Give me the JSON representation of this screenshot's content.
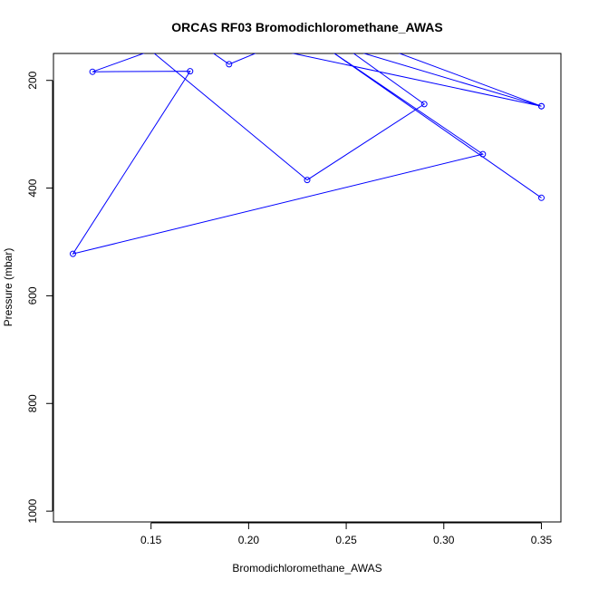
{
  "chart_data": {
    "type": "line",
    "title": "ORCAS RF03 Bromodichloromethane_AWAS",
    "xlabel": "Bromodichloromethane_AWAS",
    "ylabel": "Pressure (mbar)",
    "xlim": [
      0.1,
      0.36
    ],
    "ylim": [
      1020,
      150
    ],
    "y_reversed": true,
    "xticks": [
      0.15,
      0.2,
      0.25,
      0.3,
      0.35
    ],
    "xtick_labels": [
      "0.15",
      "0.20",
      "0.25",
      "0.30",
      "0.35"
    ],
    "yticks": [
      200,
      400,
      600,
      800,
      1000
    ],
    "ytick_labels": [
      "200",
      "400",
      "600",
      "800",
      "1000"
    ],
    "grid": false,
    "series_color": "#0000ff",
    "series": [
      {
        "x": [
          0.35,
          0.24,
          0.32,
          0.11,
          0.17,
          0.12,
          0.15,
          0.23,
          0.29,
          0.25,
          0.35,
          0.27,
          0.35,
          0.21,
          0.19,
          0.18
        ],
        "y": [
          418,
          140,
          337,
          522,
          183,
          184,
          145,
          385,
          244,
          140,
          248,
          140,
          248,
          140,
          170,
          145
        ],
        "points_shown": [
          true,
          false,
          true,
          true,
          true,
          true,
          false,
          true,
          true,
          false,
          true,
          false,
          true,
          false,
          true,
          false
        ]
      }
    ]
  }
}
